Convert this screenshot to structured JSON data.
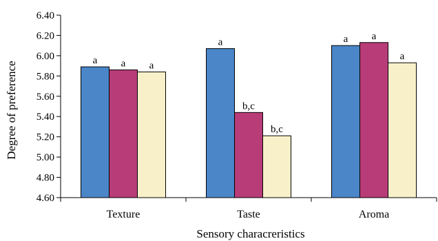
{
  "chart_data": {
    "type": "bar",
    "title": "",
    "xlabel": "Sensory characreristics",
    "ylabel": "Degree of preference",
    "categories": [
      "Texture",
      "Taste",
      "Aroma"
    ],
    "ylim": [
      4.6,
      6.4
    ],
    "yticks": [
      "4.60",
      "4.80",
      "5.00",
      "5.20",
      "5.40",
      "5.60",
      "5.80",
      "6.00",
      "6.20",
      "6.40"
    ],
    "grid": false,
    "legend": "none",
    "series": [
      {
        "color": "#4a86c8",
        "values": [
          5.89,
          6.07,
          6.1
        ],
        "labels": [
          "a",
          "a",
          "a"
        ]
      },
      {
        "color": "#b83c78",
        "values": [
          5.86,
          5.44,
          6.13
        ],
        "labels": [
          "a",
          "b,c",
          "a"
        ]
      },
      {
        "color": "#f8f0c8",
        "values": [
          5.84,
          5.21,
          5.93
        ],
        "labels": [
          "a",
          "b,c",
          "a"
        ]
      }
    ]
  }
}
